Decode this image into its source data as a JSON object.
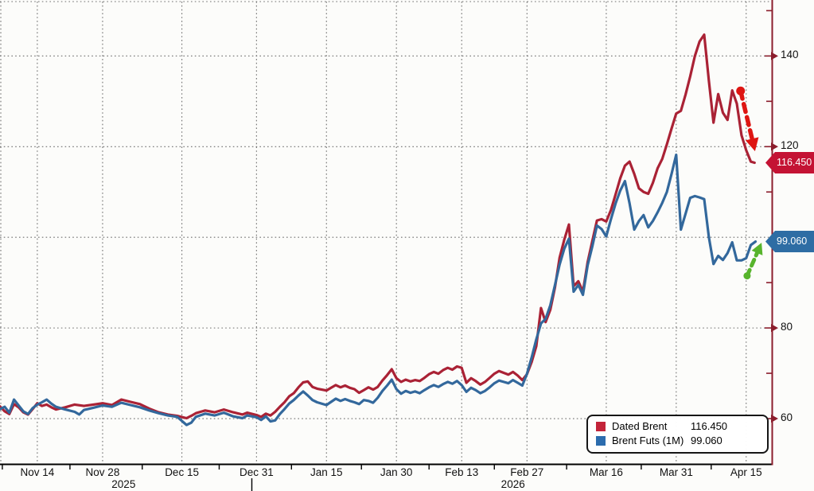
{
  "chart_data": {
    "type": "line",
    "description": "Dated Brent vs 1-month Brent futures price history, Nov 2025 - Apr 2026, prices in USD/bbl, y-axis on right",
    "x_axis": {
      "start_date": "2025-11-06",
      "unit": "calendar_days_since_start_date",
      "xlim_days": [
        0,
        165.5
      ],
      "ticks": [
        {
          "label": "Nov 14",
          "day": 8
        },
        {
          "label": "Nov 28",
          "day": 22
        },
        {
          "label": "Dec 15",
          "day": 39
        },
        {
          "label": "Dec 31",
          "day": 55
        },
        {
          "label": "Jan 15",
          "day": 70
        },
        {
          "label": "Jan 30",
          "day": 85
        },
        {
          "label": "Feb 13",
          "day": 99
        },
        {
          "label": "Feb 27",
          "day": 113
        },
        {
          "label": "Mar 16",
          "day": 130
        },
        {
          "label": "Mar 31",
          "day": 145
        },
        {
          "label": "Apr 15",
          "day": 160
        }
      ],
      "minor_tick_days": [
        0.5,
        15,
        30.5,
        47,
        62.5,
        77.5,
        92,
        106,
        121.5,
        137.5,
        152.5
      ],
      "year_labels": [
        {
          "label": "2025",
          "day": 26.5
        },
        {
          "label": "2026",
          "day": 110
        }
      ],
      "year_divider_day": 54
    },
    "y_axis": {
      "side": "right",
      "ylim": [
        50,
        152
      ],
      "labeled_ticks": [
        140,
        120,
        80,
        60
      ],
      "minor_ticks": [
        150,
        130,
        110,
        90,
        70
      ],
      "gridline_values": [
        140,
        120,
        100,
        80,
        60
      ],
      "grid": "dotted"
    },
    "series": [
      {
        "name": "Dated Brent",
        "last_price": "116.450",
        "last_value": 116.45,
        "points": [
          [
            0,
            62.7
          ],
          [
            1,
            61.6
          ],
          [
            2,
            61.0
          ],
          [
            3,
            63.2
          ],
          [
            4,
            62.5
          ],
          [
            5,
            61.4
          ],
          [
            6,
            60.9
          ],
          [
            7,
            62.1
          ],
          [
            8,
            63.4
          ],
          [
            9,
            62.8
          ],
          [
            10,
            63.1
          ],
          [
            11,
            62.5
          ],
          [
            12,
            62.0
          ],
          [
            14,
            62.5
          ],
          [
            16,
            63.1
          ],
          [
            18,
            62.8
          ],
          [
            20,
            63.1
          ],
          [
            22,
            63.4
          ],
          [
            24,
            63.0
          ],
          [
            26,
            64.2
          ],
          [
            28,
            63.7
          ],
          [
            30,
            63.2
          ],
          [
            32,
            62.2
          ],
          [
            34,
            61.4
          ],
          [
            36,
            60.9
          ],
          [
            38,
            60.6
          ],
          [
            40,
            60.1
          ],
          [
            41,
            60.6
          ],
          [
            42,
            61.2
          ],
          [
            44,
            61.8
          ],
          [
            46,
            61.4
          ],
          [
            48,
            62.0
          ],
          [
            50,
            61.4
          ],
          [
            52,
            60.9
          ],
          [
            53,
            61.3
          ],
          [
            55,
            60.8
          ],
          [
            56,
            60.4
          ],
          [
            57,
            61.1
          ],
          [
            58,
            60.7
          ],
          [
            59,
            61.5
          ],
          [
            60,
            62.6
          ],
          [
            61,
            63.6
          ],
          [
            62,
            64.9
          ],
          [
            63,
            65.6
          ],
          [
            64,
            66.9
          ],
          [
            65,
            68.0
          ],
          [
            66,
            68.2
          ],
          [
            67,
            67.0
          ],
          [
            68,
            66.6
          ],
          [
            70,
            66.2
          ],
          [
            71,
            66.8
          ],
          [
            72,
            67.4
          ],
          [
            73,
            66.9
          ],
          [
            74,
            67.3
          ],
          [
            75,
            66.8
          ],
          [
            76,
            66.5
          ],
          [
            77,
            65.7
          ],
          [
            78,
            66.3
          ],
          [
            79,
            66.9
          ],
          [
            80,
            66.4
          ],
          [
            81,
            67.0
          ],
          [
            82,
            68.4
          ],
          [
            83,
            69.6
          ],
          [
            84,
            70.9
          ],
          [
            85,
            68.9
          ],
          [
            86,
            68.1
          ],
          [
            87,
            68.6
          ],
          [
            88,
            68.2
          ],
          [
            89,
            68.5
          ],
          [
            90,
            68.3
          ],
          [
            91,
            69.0
          ],
          [
            92,
            69.8
          ],
          [
            93,
            70.3
          ],
          [
            94,
            69.9
          ],
          [
            95,
            70.7
          ],
          [
            96,
            71.2
          ],
          [
            97,
            70.8
          ],
          [
            98,
            71.5
          ],
          [
            99,
            71.2
          ],
          [
            100,
            67.9
          ],
          [
            101,
            68.9
          ],
          [
            102,
            68.3
          ],
          [
            103,
            67.5
          ],
          [
            104,
            68.1
          ],
          [
            105,
            69.0
          ],
          [
            106,
            69.9
          ],
          [
            107,
            70.5
          ],
          [
            108,
            70.1
          ],
          [
            109,
            69.7
          ],
          [
            110,
            70.3
          ],
          [
            111,
            69.5
          ],
          [
            112,
            68.5
          ],
          [
            113,
            69.8
          ],
          [
            114,
            72.5
          ],
          [
            115,
            76.0
          ],
          [
            116,
            84.4
          ],
          [
            117,
            81.3
          ],
          [
            118,
            84.0
          ],
          [
            119,
            89.0
          ],
          [
            120,
            95.5
          ],
          [
            121,
            99.5
          ],
          [
            122,
            102.8
          ],
          [
            123,
            89.2
          ],
          [
            124,
            90.3
          ],
          [
            125,
            88.0
          ],
          [
            126,
            94.5
          ],
          [
            127,
            99.2
          ],
          [
            128,
            103.7
          ],
          [
            129,
            104.0
          ],
          [
            130,
            103.5
          ],
          [
            131,
            106.0
          ],
          [
            132,
            109.5
          ],
          [
            133,
            113.0
          ],
          [
            134,
            115.8
          ],
          [
            135,
            116.7
          ],
          [
            136,
            114.0
          ],
          [
            137,
            110.8
          ],
          [
            138,
            110.0
          ],
          [
            139,
            109.6
          ],
          [
            140,
            112.0
          ],
          [
            141,
            115.2
          ],
          [
            142,
            117.3
          ],
          [
            143,
            120.5
          ],
          [
            144,
            124.0
          ],
          [
            145,
            127.3
          ],
          [
            146,
            127.9
          ],
          [
            147,
            131.5
          ],
          [
            148,
            135.5
          ],
          [
            149,
            140.0
          ],
          [
            150,
            143.2
          ],
          [
            151,
            144.7
          ],
          [
            152,
            134.5
          ],
          [
            153,
            125.3
          ],
          [
            154,
            131.6
          ],
          [
            155,
            127.5
          ],
          [
            156,
            125.9
          ],
          [
            157,
            132.4
          ],
          [
            158,
            129.5
          ],
          [
            159,
            122.5
          ],
          [
            160,
            119.2
          ],
          [
            161,
            116.7
          ],
          [
            161.8,
            116.45
          ]
        ]
      },
      {
        "name": "Brent Futs (1M)",
        "last_price": "99.060",
        "last_value": 99.06,
        "points": [
          [
            0,
            62.1
          ],
          [
            1,
            62.6
          ],
          [
            2,
            61.3
          ],
          [
            3,
            64.2
          ],
          [
            4,
            62.9
          ],
          [
            5,
            61.6
          ],
          [
            6,
            61.0
          ],
          [
            7,
            62.3
          ],
          [
            8,
            63.1
          ],
          [
            9,
            63.6
          ],
          [
            10,
            64.2
          ],
          [
            11,
            63.3
          ],
          [
            12,
            62.6
          ],
          [
            14,
            62.0
          ],
          [
            16,
            61.5
          ],
          [
            17,
            60.9
          ],
          [
            18,
            61.9
          ],
          [
            20,
            62.4
          ],
          [
            22,
            62.9
          ],
          [
            24,
            62.6
          ],
          [
            26,
            63.5
          ],
          [
            28,
            63.0
          ],
          [
            30,
            62.5
          ],
          [
            32,
            61.8
          ],
          [
            34,
            61.2
          ],
          [
            36,
            60.7
          ],
          [
            38,
            60.4
          ],
          [
            40,
            58.6
          ],
          [
            41,
            59.1
          ],
          [
            42,
            60.4
          ],
          [
            44,
            61.1
          ],
          [
            46,
            60.7
          ],
          [
            48,
            61.3
          ],
          [
            50,
            60.5
          ],
          [
            52,
            60.1
          ],
          [
            53,
            60.7
          ],
          [
            55,
            60.3
          ],
          [
            56,
            59.7
          ],
          [
            57,
            60.5
          ],
          [
            58,
            59.4
          ],
          [
            59,
            59.6
          ],
          [
            60,
            61.0
          ],
          [
            61,
            62.1
          ],
          [
            62,
            63.3
          ],
          [
            63,
            64.1
          ],
          [
            64,
            65.1
          ],
          [
            65,
            66.0
          ],
          [
            66,
            65.1
          ],
          [
            67,
            64.1
          ],
          [
            68,
            63.6
          ],
          [
            70,
            63.0
          ],
          [
            71,
            63.7
          ],
          [
            72,
            64.4
          ],
          [
            73,
            63.9
          ],
          [
            74,
            64.3
          ],
          [
            75,
            63.9
          ],
          [
            76,
            63.6
          ],
          [
            77,
            63.2
          ],
          [
            78,
            64.1
          ],
          [
            79,
            63.9
          ],
          [
            80,
            63.5
          ],
          [
            81,
            64.6
          ],
          [
            82,
            66.1
          ],
          [
            83,
            67.3
          ],
          [
            84,
            68.6
          ],
          [
            85,
            66.5
          ],
          [
            86,
            65.5
          ],
          [
            87,
            66.1
          ],
          [
            88,
            65.7
          ],
          [
            89,
            66.0
          ],
          [
            90,
            65.6
          ],
          [
            91,
            66.3
          ],
          [
            92,
            66.9
          ],
          [
            93,
            67.4
          ],
          [
            94,
            67.0
          ],
          [
            95,
            67.6
          ],
          [
            96,
            68.1
          ],
          [
            97,
            67.7
          ],
          [
            98,
            68.3
          ],
          [
            99,
            67.4
          ],
          [
            100,
            65.9
          ],
          [
            101,
            66.8
          ],
          [
            102,
            66.3
          ],
          [
            103,
            65.6
          ],
          [
            104,
            66.1
          ],
          [
            105,
            66.9
          ],
          [
            106,
            67.8
          ],
          [
            107,
            68.4
          ],
          [
            108,
            68.1
          ],
          [
            109,
            67.8
          ],
          [
            110,
            68.5
          ],
          [
            111,
            67.9
          ],
          [
            112,
            67.3
          ],
          [
            113,
            69.9
          ],
          [
            114,
            73.5
          ],
          [
            115,
            77.5
          ],
          [
            116,
            81.0
          ],
          [
            117,
            82.0
          ],
          [
            118,
            85.0
          ],
          [
            119,
            89.5
          ],
          [
            120,
            94.0
          ],
          [
            121,
            97.5
          ],
          [
            122,
            99.7
          ],
          [
            123,
            88.0
          ],
          [
            124,
            89.5
          ],
          [
            125,
            87.3
          ],
          [
            126,
            93.8
          ],
          [
            127,
            98.0
          ],
          [
            128,
            102.6
          ],
          [
            129,
            101.8
          ],
          [
            130,
            100.2
          ],
          [
            131,
            104.0
          ],
          [
            132,
            107.5
          ],
          [
            133,
            110.3
          ],
          [
            134,
            112.4
          ],
          [
            135,
            107.5
          ],
          [
            136,
            101.7
          ],
          [
            137,
            103.6
          ],
          [
            138,
            104.9
          ],
          [
            139,
            102.2
          ],
          [
            140,
            103.6
          ],
          [
            141,
            105.5
          ],
          [
            142,
            107.6
          ],
          [
            143,
            110.0
          ],
          [
            144,
            114.0
          ],
          [
            145,
            118.2
          ],
          [
            146,
            101.7
          ],
          [
            147,
            105.2
          ],
          [
            148,
            108.7
          ],
          [
            149,
            109.1
          ],
          [
            150,
            108.8
          ],
          [
            151,
            108.4
          ],
          [
            152,
            100.0
          ],
          [
            153,
            94.1
          ],
          [
            154,
            95.9
          ],
          [
            155,
            95.0
          ],
          [
            156,
            96.5
          ],
          [
            157,
            98.9
          ],
          [
            158,
            94.9
          ],
          [
            159,
            94.9
          ],
          [
            160,
            95.4
          ],
          [
            161,
            98.3
          ],
          [
            162,
            99.06
          ]
        ]
      }
    ],
    "annotations": {
      "red_arrow": {
        "meaning": "dated brent falling",
        "direction": "down-right",
        "from": [
          158.8,
          132.3
        ],
        "to": [
          161.9,
          119.0
        ]
      },
      "green_arrow": {
        "meaning": "brent futures rising",
        "direction": "up-right",
        "from": [
          160.2,
          91.5
        ],
        "to": [
          163.3,
          98.8
        ]
      }
    },
    "legend": {
      "position": "bottom-right",
      "entries": [
        {
          "label": "Dated Brent",
          "value": "116.450"
        },
        {
          "label": "Brent Futs (1M)",
          "value": "99.060"
        }
      ]
    }
  },
  "colors": {
    "line_red": "#aa2235",
    "line_blue": "#33689c",
    "axis_red": "#8b1d2c",
    "axis_black": "#000000",
    "grid": "#6e6e6e",
    "arrow_red": "#de1512",
    "arrow_green": "#57b42c",
    "badge_red": "#c41334",
    "badge_blue": "#2e6da4",
    "legend_red": "#c3243a",
    "legend_blue": "#2c6cae"
  }
}
